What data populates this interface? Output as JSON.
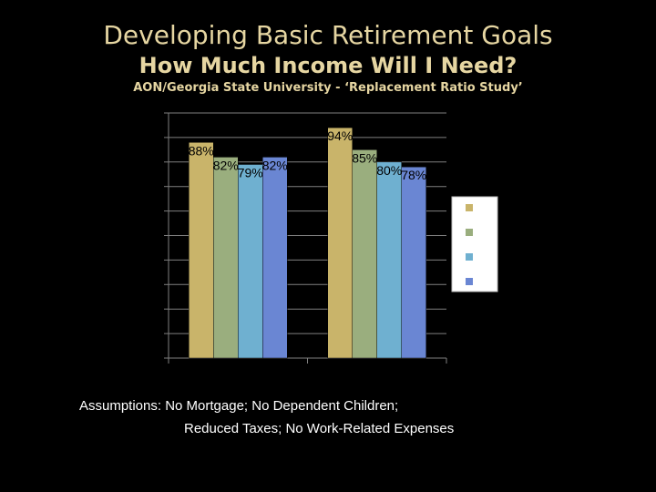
{
  "header": {
    "title": "Developing Basic Retirement Goals",
    "subtitle": "How Much Income Will I Need?",
    "source": "AON/Georgia State University - ‘Replacement Ratio Study’"
  },
  "footer": {
    "line1": "Assumptions: No Mortgage; No Dependent Children;",
    "line2": "Reduced Taxes; No Work-Related Expenses"
  },
  "chart_data": {
    "type": "bar",
    "title": "",
    "xlabel": "",
    "ylabel": "",
    "categories": [
      "",
      ""
    ],
    "ylim": [
      0,
      100
    ],
    "grid": true,
    "legend_placement": "right",
    "series": [
      {
        "values": [
          88,
          94
        ],
        "labels": [
          "88%",
          "94%"
        ],
        "color": "#c9b46a"
      },
      {
        "values": [
          82,
          85
        ],
        "labels": [
          "82%",
          "85%"
        ],
        "color": "#9aae7e"
      },
      {
        "values": [
          79,
          80
        ],
        "labels": [
          "79%",
          "80%"
        ],
        "color": "#6fb0d0"
      },
      {
        "values": [
          82,
          78
        ],
        "labels": [
          "82%",
          "78%"
        ],
        "color": "#6a86d3"
      }
    ],
    "legend_box_color": "#ffffff"
  }
}
